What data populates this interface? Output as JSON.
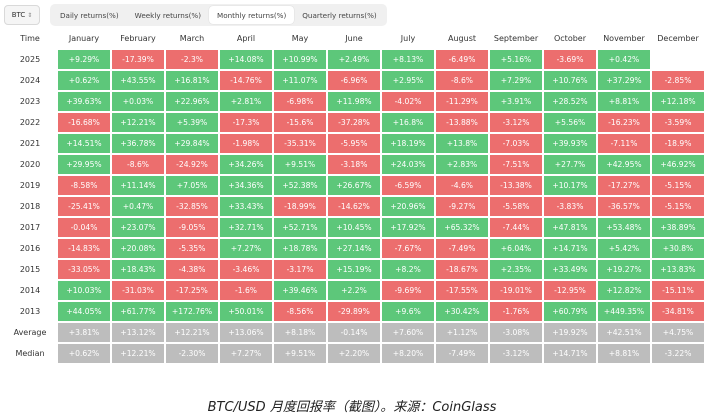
{
  "toolbar": {
    "asset": "BTC",
    "tabs": [
      "Daily returns(%)",
      "Weekly returns(%)",
      "Monthly returns(%)",
      "Quarterly returns(%)"
    ],
    "active_tab": 2
  },
  "table": {
    "corner": "Time",
    "months": [
      "January",
      "February",
      "March",
      "April",
      "May",
      "June",
      "July",
      "August",
      "September",
      "October",
      "November",
      "December"
    ],
    "rows": [
      {
        "label": "2025",
        "cells": [
          "+9.29%",
          "-17.39%",
          "-2.3%",
          "+14.08%",
          "+10.99%",
          "+2.49%",
          "+8.13%",
          "-6.49%",
          "+5.16%",
          "-3.69%",
          "+0.42%",
          ""
        ]
      },
      {
        "label": "2024",
        "cells": [
          "+0.62%",
          "+43.55%",
          "+16.81%",
          "-14.76%",
          "+11.07%",
          "-6.96%",
          "+2.95%",
          "-8.6%",
          "+7.29%",
          "+10.76%",
          "+37.29%",
          "-2.85%"
        ]
      },
      {
        "label": "2023",
        "cells": [
          "+39.63%",
          "+0.03%",
          "+22.96%",
          "+2.81%",
          "-6.98%",
          "+11.98%",
          "-4.02%",
          "-11.29%",
          "+3.91%",
          "+28.52%",
          "+8.81%",
          "+12.18%"
        ]
      },
      {
        "label": "2022",
        "cells": [
          "-16.68%",
          "+12.21%",
          "+5.39%",
          "-17.3%",
          "-15.6%",
          "-37.28%",
          "+16.8%",
          "-13.88%",
          "-3.12%",
          "+5.56%",
          "-16.23%",
          "-3.59%"
        ]
      },
      {
        "label": "2021",
        "cells": [
          "+14.51%",
          "+36.78%",
          "+29.84%",
          "-1.98%",
          "-35.31%",
          "-5.95%",
          "+18.19%",
          "+13.8%",
          "-7.03%",
          "+39.93%",
          "-7.11%",
          "-18.9%"
        ]
      },
      {
        "label": "2020",
        "cells": [
          "+29.95%",
          "-8.6%",
          "-24.92%",
          "+34.26%",
          "+9.51%",
          "-3.18%",
          "+24.03%",
          "+2.83%",
          "-7.51%",
          "+27.7%",
          "+42.95%",
          "+46.92%"
        ]
      },
      {
        "label": "2019",
        "cells": [
          "-8.58%",
          "+11.14%",
          "+7.05%",
          "+34.36%",
          "+52.38%",
          "+26.67%",
          "-6.59%",
          "-4.6%",
          "-13.38%",
          "+10.17%",
          "-17.27%",
          "-5.15%"
        ]
      },
      {
        "label": "2018",
        "cells": [
          "-25.41%",
          "+0.47%",
          "-32.85%",
          "+33.43%",
          "-18.99%",
          "-14.62%",
          "+20.96%",
          "-9.27%",
          "-5.58%",
          "-3.83%",
          "-36.57%",
          "-5.15%"
        ]
      },
      {
        "label": "2017",
        "cells": [
          "-0.04%",
          "+23.07%",
          "-9.05%",
          "+32.71%",
          "+52.71%",
          "+10.45%",
          "+17.92%",
          "+65.32%",
          "-7.44%",
          "+47.81%",
          "+53.48%",
          "+38.89%"
        ]
      },
      {
        "label": "2016",
        "cells": [
          "-14.83%",
          "+20.08%",
          "-5.35%",
          "+7.27%",
          "+18.78%",
          "+27.14%",
          "-7.67%",
          "-7.49%",
          "+6.04%",
          "+14.71%",
          "+5.42%",
          "+30.8%"
        ]
      },
      {
        "label": "2015",
        "cells": [
          "-33.05%",
          "+18.43%",
          "-4.38%",
          "-3.46%",
          "-3.17%",
          "+15.19%",
          "+8.2%",
          "-18.67%",
          "+2.35%",
          "+33.49%",
          "+19.27%",
          "+13.83%"
        ]
      },
      {
        "label": "2014",
        "cells": [
          "+10.03%",
          "-31.03%",
          "-17.25%",
          "-1.6%",
          "+39.46%",
          "+2.2%",
          "-9.69%",
          "-17.55%",
          "-19.01%",
          "-12.95%",
          "+12.82%",
          "-15.11%"
        ]
      },
      {
        "label": "2013",
        "cells": [
          "+44.05%",
          "+61.77%",
          "+172.76%",
          "+50.01%",
          "-8.56%",
          "-29.89%",
          "+9.6%",
          "+30.42%",
          "-1.76%",
          "+60.79%",
          "+449.35%",
          "-34.81%"
        ]
      }
    ],
    "summary": [
      {
        "label": "Average",
        "cells": [
          "+3.81%",
          "+13.12%",
          "+12.21%",
          "+13.06%",
          "+8.18%",
          "-0.14%",
          "+7.60%",
          "+1.12%",
          "-3.08%",
          "+19.92%",
          "+42.51%",
          "+4.75%"
        ]
      },
      {
        "label": "Median",
        "cells": [
          "+0.62%",
          "+12.21%",
          "-2.30%",
          "+7.27%",
          "+9.51%",
          "+2.20%",
          "+8.20%",
          "-7.49%",
          "-3.12%",
          "+14.71%",
          "+8.81%",
          "-3.22%"
        ]
      }
    ]
  },
  "caption": "BTC/USD 月度回报率（截图）。来源：CoinGlass",
  "colors": {
    "positive": "#5dc77a",
    "negative": "#ec6e6e",
    "summary": "#bdbdbd"
  }
}
